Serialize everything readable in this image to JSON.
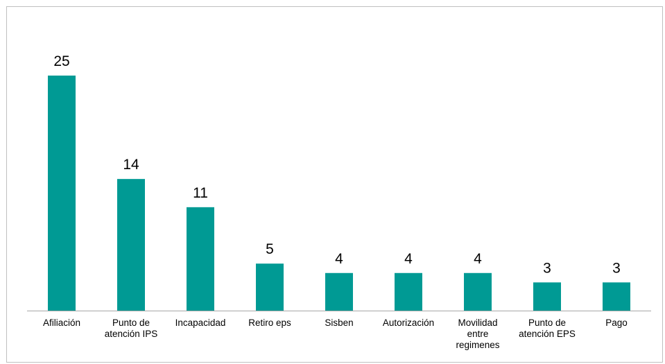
{
  "chart_data": {
    "type": "bar",
    "categories": [
      [
        "Afiliación"
      ],
      [
        "Punto de",
        "atención IPS"
      ],
      [
        "Incapacidad"
      ],
      [
        "Retiro eps"
      ],
      [
        "Sisben"
      ],
      [
        "Autorización"
      ],
      [
        "Movilidad",
        "entre",
        "regimenes"
      ],
      [
        "Punto de",
        "atención EPS"
      ],
      [
        "Pago"
      ]
    ],
    "values": [
      25,
      14,
      11,
      5,
      4,
      4,
      4,
      3,
      3
    ],
    "ylim": [
      0,
      25
    ],
    "data_labels": true,
    "grid": false,
    "legend": "none",
    "bar_color": "#009a94",
    "axis_color": "#a6a6a6"
  }
}
